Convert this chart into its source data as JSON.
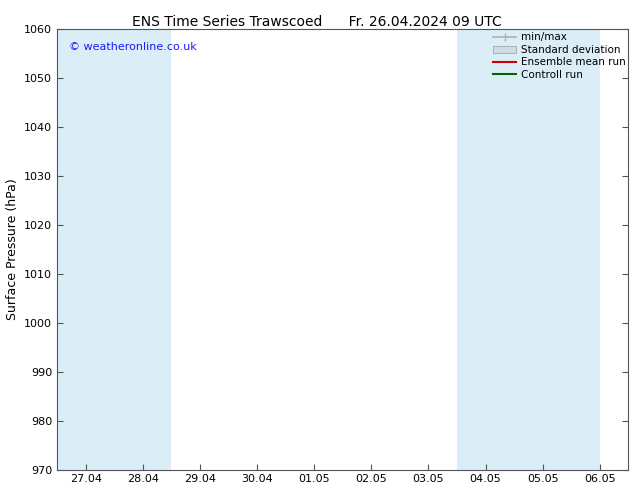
{
  "title_left": "ENS Time Series Trawscoed",
  "title_right": "Fr. 26.04.2024 09 UTC",
  "ylabel": "Surface Pressure (hPa)",
  "ylim": [
    970,
    1060
  ],
  "yticks": [
    970,
    980,
    990,
    1000,
    1010,
    1020,
    1030,
    1040,
    1050,
    1060
  ],
  "xtick_labels": [
    "27.04",
    "28.04",
    "29.04",
    "30.04",
    "01.05",
    "02.05",
    "03.05",
    "04.05",
    "05.05",
    "06.05"
  ],
  "n_xticks": 10,
  "copyright_text": "© weatheronline.co.uk",
  "legend_items": [
    {
      "label": "min/max",
      "color": "#b0b0b0",
      "type": "minmax"
    },
    {
      "label": "Standard deviation",
      "color": "#ccdde8",
      "type": "fill"
    },
    {
      "label": "Ensemble mean run",
      "color": "#cc0000",
      "type": "line"
    },
    {
      "label": "Controll run",
      "color": "#006600",
      "type": "line"
    }
  ],
  "band_xranges": [
    [
      0.0,
      1.0
    ],
    [
      1.0,
      2.0
    ],
    [
      7.0,
      8.0
    ],
    [
      8.0,
      9.0
    ],
    [
      9.0,
      9.5
    ]
  ],
  "band_color": "#dbeef8",
  "background_color": "#ffffff",
  "plot_bg_color": "#ffffff",
  "spine_color": "#555555",
  "title_fontsize": 10,
  "ylabel_fontsize": 9,
  "tick_fontsize": 8,
  "legend_fontsize": 7.5
}
